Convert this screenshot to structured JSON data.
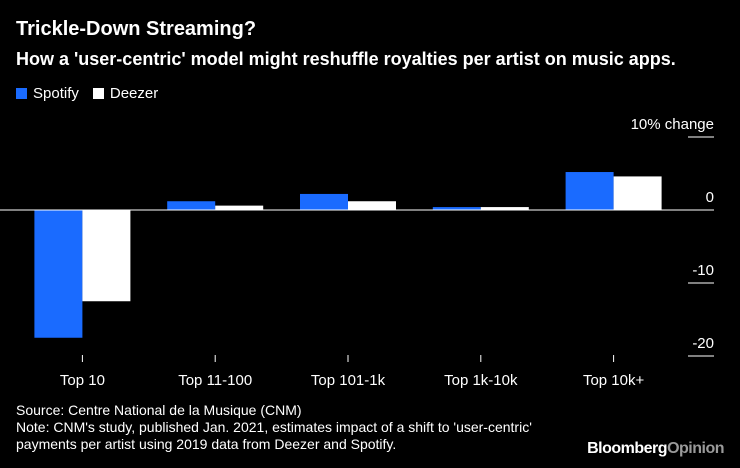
{
  "title": "Trickle-Down Streaming?",
  "subtitle": "How a 'user-centric' model might reshuffle royalties per artist on music apps.",
  "source": "Source: Centre National de la Musique (CNM)",
  "note": "Note: CNM's study, published Jan. 2021, estimates impact of a shift to 'user-centric' payments per artist using 2019 data from Deezer and Spotify.",
  "brand": {
    "part1": "Bloomberg",
    "part2": "Opinion"
  },
  "colors": {
    "background": "#000000",
    "spotify": "#1a6bff",
    "deezer": "#ffffff",
    "text": "#ffffff",
    "grid": "#555555",
    "brand_secondary": "#9a9a9a"
  },
  "chart_data": {
    "type": "bar",
    "categories": [
      "Top 10",
      "Top 11-100",
      "Top 101-1k",
      "Top 1k-10k",
      "Top 10k+"
    ],
    "series": [
      {
        "name": "Spotify",
        "values": [
          -17.5,
          1.2,
          2.2,
          0.4,
          5.2
        ]
      },
      {
        "name": "Deezer",
        "values": [
          -12.5,
          0.6,
          1.2,
          0.4,
          4.6
        ]
      }
    ],
    "ylim": [
      -20,
      10
    ],
    "yticks": [
      {
        "value": 10,
        "label": "10% change"
      },
      {
        "value": 0,
        "label": "0"
      },
      {
        "value": -10,
        "label": "-10"
      },
      {
        "value": -20,
        "label": "-20"
      }
    ],
    "legend_position": "top-left",
    "grid": false
  }
}
